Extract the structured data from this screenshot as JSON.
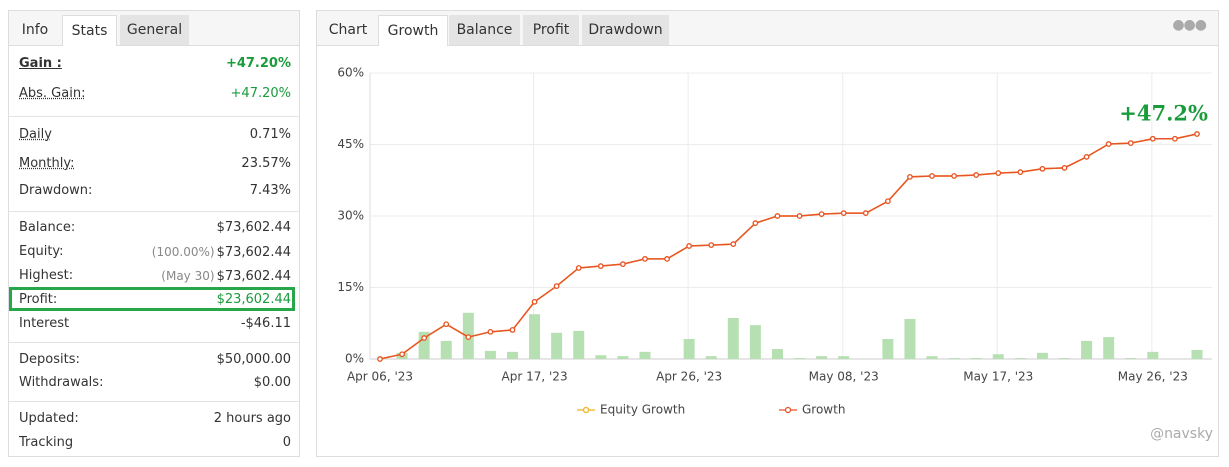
{
  "left_tabs": [
    "Info",
    "Stats",
    "General"
  ],
  "stats": [
    [
      {
        "label": "Gain :",
        "value": "+47.20%",
        "bold": true,
        "color": "#1a9b3c"
      },
      {
        "label": "Abs. Gain:",
        "value": "+47.20%",
        "underline": true,
        "color": "#1a9b3c"
      }
    ],
    [
      {
        "label": "Daily",
        "value": "0.71%",
        "underline": true
      },
      {
        "label": "Monthly:",
        "value": "23.57%",
        "underline": true
      },
      {
        "label": "Drawdown:",
        "value": "7.43%"
      }
    ],
    [
      {
        "label": "Balance:",
        "value": "$73,602.44"
      },
      {
        "label": "Equity:",
        "note": "(100.00%)",
        "value": "$73,602.44"
      },
      {
        "label": "Highest:",
        "note": "(May 30)",
        "value": "$73,602.44"
      },
      {
        "label": "Profit:",
        "value": "$23,602.44",
        "color": "#1a9b3c",
        "highlight": "#27a64a"
      },
      {
        "label": "Interest",
        "value": "-$46.11"
      }
    ],
    [
      {
        "label": "Deposits:",
        "value": "$50,000.00"
      },
      {
        "label": "Withdrawals:",
        "value": "$0.00"
      }
    ],
    [
      {
        "label": "Updated:",
        "value": "2 hours ago"
      },
      {
        "label": "Tracking",
        "value": "0"
      }
    ]
  ],
  "chart_tabs": [
    "Chart",
    "Growth",
    "Balance",
    "Profit",
    "Drawdown"
  ],
  "chart_data": {
    "type": "line",
    "annotation": "+47.2%",
    "annotation_color": "#1a9b3c",
    "categories": [
      "Apr 06, '23",
      null,
      null,
      null,
      null,
      null,
      null,
      "Apr 17, '23",
      null,
      null,
      null,
      null,
      null,
      null,
      "Apr 26, '23",
      null,
      null,
      null,
      null,
      null,
      null,
      "May 08, '23",
      null,
      null,
      null,
      null,
      null,
      null,
      "May 17, '23",
      null,
      null,
      null,
      null,
      null,
      null,
      "May 26, '23",
      null,
      null
    ],
    "ylim": [
      0,
      60
    ],
    "yticks": [
      {
        "value": 0,
        "label": "0%"
      },
      {
        "value": 15,
        "label": "15%"
      },
      {
        "value": 30,
        "label": "30%"
      },
      {
        "value": 45,
        "label": "45%"
      },
      {
        "value": 60,
        "label": "60%"
      }
    ],
    "grid": true,
    "bars": {
      "color": "#b7e0b2",
      "values": [
        0,
        1.3,
        5.7,
        3.8,
        9.7,
        1.7,
        1.5,
        9.4,
        5.5,
        5.9,
        0.8,
        0.6,
        1.5,
        0,
        4.2,
        0.6,
        8.6,
        7.1,
        2.1,
        0.2,
        0.6,
        0.6,
        0,
        4.2,
        8.4,
        0.6,
        0.2,
        0.2,
        1.0,
        0.2,
        1.3,
        0.2,
        3.8,
        4.6,
        0.2,
        1.5,
        0,
        1.9
      ]
    },
    "series": [
      {
        "name": "Equity Growth",
        "color": "#f2b418",
        "values": [
          0,
          1.0,
          4.4,
          7.3,
          4.6,
          5.7,
          6.1,
          12.0,
          15.3,
          19.1,
          19.5,
          19.9,
          21.0,
          21.0,
          23.7,
          23.9,
          24.1,
          28.5,
          30.0,
          30.0,
          30.4,
          30.6,
          30.6,
          33.1,
          38.2,
          38.4,
          38.4,
          38.6,
          39.0,
          39.2,
          39.9,
          40.1,
          42.4,
          45.1,
          45.3,
          46.2,
          46.2,
          47.2
        ]
      },
      {
        "name": "Growth",
        "color": "#e8542a",
        "values": [
          0,
          1.0,
          4.4,
          7.3,
          4.6,
          5.7,
          6.1,
          12.0,
          15.3,
          19.1,
          19.5,
          19.9,
          21.0,
          21.0,
          23.7,
          23.9,
          24.1,
          28.5,
          30.0,
          30.0,
          30.4,
          30.6,
          30.6,
          33.1,
          38.2,
          38.4,
          38.4,
          38.6,
          39.0,
          39.2,
          39.9,
          40.1,
          42.4,
          45.1,
          45.3,
          46.2,
          46.2,
          47.2
        ]
      }
    ]
  },
  "watermark": "@navsky"
}
